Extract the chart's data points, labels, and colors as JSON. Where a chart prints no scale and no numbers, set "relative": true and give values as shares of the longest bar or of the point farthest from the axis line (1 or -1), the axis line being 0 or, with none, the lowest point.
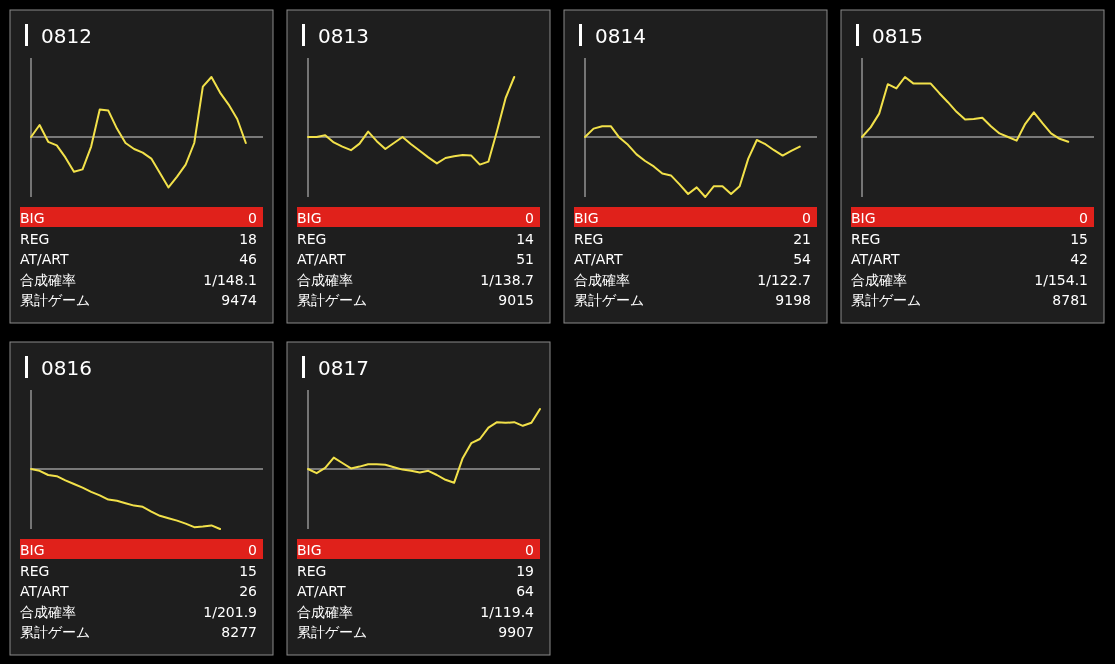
{
  "chart_data": [
    {
      "type": "line",
      "title": "0812",
      "relative": true,
      "categories": [
        null,
        null,
        null,
        null,
        null,
        null,
        null,
        null,
        null,
        null,
        null,
        null,
        null,
        null,
        null,
        null,
        null,
        null,
        null,
        null,
        null,
        null,
        null,
        null,
        null,
        null,
        null,
        null
      ],
      "series": [
        {
          "color": "#f2e14a",
          "values": [
            0,
            0.2,
            -0.08,
            -0.14,
            -0.34,
            -0.58,
            -0.54,
            -0.16,
            0.46,
            0.44,
            0.14,
            -0.1,
            -0.2,
            -0.26,
            -0.36,
            -0.6,
            -0.84,
            -0.66,
            -0.46,
            -0.1,
            0.84,
            1,
            0.74,
            0.54,
            0.3,
            -0.1,
            null,
            null
          ]
        }
      ],
      "annotations": [
        "BIG",
        "0",
        "REG",
        "18",
        "AT/ART",
        "46",
        "合成確率",
        "1/148.1",
        "累計ゲーム",
        "9474"
      ]
    },
    {
      "type": "line",
      "title": "0813",
      "relative": true,
      "categories": [
        null,
        null,
        null,
        null,
        null,
        null,
        null,
        null,
        null,
        null,
        null,
        null,
        null,
        null,
        null,
        null,
        null,
        null,
        null,
        null,
        null,
        null,
        null,
        null,
        null,
        null,
        null,
        null
      ],
      "series": [
        {
          "color": "#f2e14a",
          "values": [
            0,
            0,
            0.03,
            -0.09,
            -0.16,
            -0.22,
            -0.11,
            0.09,
            -0.07,
            -0.2,
            -0.1,
            0,
            -0.12,
            -0.23,
            -0.34,
            -0.44,
            -0.35,
            -0.32,
            -0.3,
            -0.31,
            -0.46,
            -0.41,
            0.1,
            0.65,
            1,
            null,
            null,
            null
          ]
        }
      ],
      "annotations": [
        "BIG",
        "0",
        "REG",
        "14",
        "AT/ART",
        "51",
        "合成確率",
        "1/138.7",
        "累計ゲーム",
        "9015"
      ]
    },
    {
      "type": "line",
      "title": "0814",
      "relative": true,
      "categories": [
        null,
        null,
        null,
        null,
        null,
        null,
        null,
        null,
        null,
        null,
        null,
        null,
        null,
        null,
        null,
        null,
        null,
        null,
        null,
        null,
        null,
        null,
        null,
        null,
        null,
        null,
        null,
        null
      ],
      "series": [
        {
          "color": "#f2e14a",
          "values": [
            0,
            0.14,
            0.18,
            0.18,
            -0.01,
            -0.13,
            -0.29,
            -0.4,
            -0.49,
            -0.61,
            -0.64,
            -0.79,
            -0.95,
            -0.84,
            -1,
            -0.82,
            -0.82,
            -0.95,
            -0.82,
            -0.36,
            -0.05,
            -0.12,
            -0.22,
            -0.31,
            -0.23,
            -0.16,
            null,
            null
          ]
        }
      ],
      "annotations": [
        "BIG",
        "0",
        "REG",
        "21",
        "AT/ART",
        "54",
        "合成確率",
        "1/122.7",
        "累計ゲーム",
        "9198"
      ]
    },
    {
      "type": "line",
      "title": "0815",
      "relative": true,
      "categories": [
        null,
        null,
        null,
        null,
        null,
        null,
        null,
        null,
        null,
        null,
        null,
        null,
        null,
        null,
        null,
        null,
        null,
        null,
        null,
        null,
        null,
        null,
        null,
        null,
        null,
        null,
        null,
        null
      ],
      "series": [
        {
          "color": "#f2e14a",
          "values": [
            0,
            0.16,
            0.39,
            0.88,
            0.81,
            1,
            0.89,
            0.89,
            0.89,
            0.73,
            0.58,
            0.42,
            0.29,
            0.3,
            0.32,
            0.18,
            0.06,
            0,
            -0.06,
            0.22,
            0.41,
            0.23,
            0.06,
            -0.03,
            -0.08,
            null,
            null,
            null
          ]
        }
      ],
      "annotations": [
        "BIG",
        "0",
        "REG",
        "15",
        "AT/ART",
        "42",
        "合成確率",
        "1/154.1",
        "累計ゲーム",
        "8781"
      ]
    },
    {
      "type": "line",
      "title": "0816",
      "relative": true,
      "categories": [
        null,
        null,
        null,
        null,
        null,
        null,
        null,
        null,
        null,
        null,
        null,
        null,
        null,
        null,
        null,
        null,
        null,
        null,
        null,
        null,
        null,
        null,
        null,
        null,
        null,
        null,
        null,
        null
      ],
      "series": [
        {
          "color": "#f2e14a",
          "values": [
            0,
            -0.03,
            -0.1,
            -0.12,
            -0.19,
            -0.25,
            -0.31,
            -0.38,
            -0.44,
            -0.51,
            -0.53,
            -0.57,
            -0.61,
            -0.63,
            -0.71,
            -0.78,
            -0.82,
            -0.86,
            -0.91,
            -0.97,
            -0.96,
            -0.94,
            -1,
            null,
            null,
            null,
            null,
            null
          ]
        }
      ],
      "annotations": [
        "BIG",
        "0",
        "REG",
        "15",
        "AT/ART",
        "26",
        "合成確率",
        "1/201.9",
        "累計ゲーム",
        "8277"
      ]
    },
    {
      "type": "line",
      "title": "0817",
      "relative": true,
      "categories": [
        null,
        null,
        null,
        null,
        null,
        null,
        null,
        null,
        null,
        null,
        null,
        null,
        null,
        null,
        null,
        null,
        null,
        null,
        null,
        null,
        null,
        null,
        null,
        null,
        null,
        null,
        null,
        null
      ],
      "series": [
        {
          "color": "#f2e14a",
          "values": [
            0,
            -0.07,
            0.02,
            0.19,
            0.1,
            0.01,
            0.04,
            0.08,
            0.08,
            0.07,
            0.03,
            -0.01,
            -0.03,
            -0.06,
            -0.03,
            -0.1,
            -0.18,
            -0.23,
            0.18,
            0.43,
            0.5,
            0.69,
            0.78,
            0.77,
            0.78,
            0.72,
            0.77,
            1
          ]
        }
      ],
      "annotations": [
        "BIG",
        "0",
        "REG",
        "19",
        "AT/ART",
        "64",
        "合成確率",
        "1/119.4",
        "累計ゲーム",
        "9907"
      ]
    }
  ]
}
